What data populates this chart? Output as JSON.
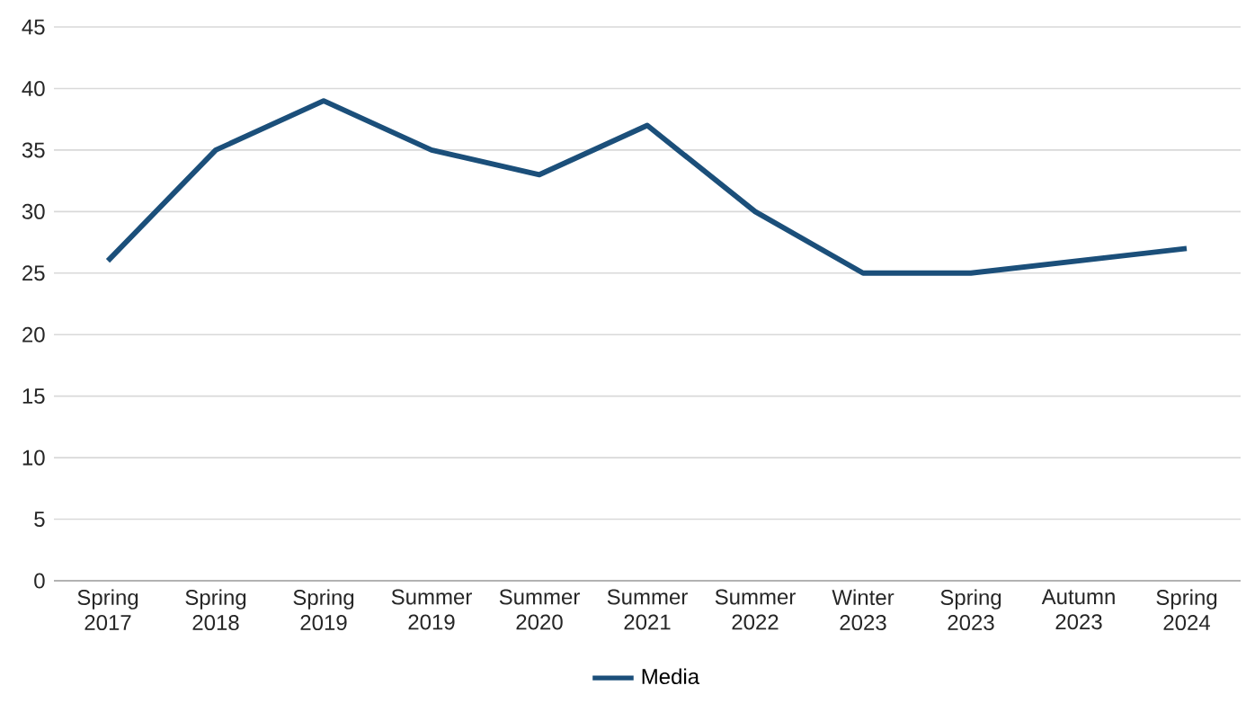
{
  "chart_data": {
    "type": "line",
    "categories": [
      "Spring 2017",
      "Spring 2018",
      "Spring 2019",
      "Summer 2019",
      "Summer 2020",
      "Summer 2021",
      "Summer 2022",
      "Winter 2023",
      "Spring 2023",
      "Autumn 2023",
      "Spring 2024"
    ],
    "series": [
      {
        "name": "Media",
        "color": "#1b4f7a",
        "values": [
          26,
          35,
          39,
          35,
          33,
          37,
          30,
          25,
          25,
          26,
          27
        ]
      }
    ],
    "ylim": [
      0,
      45
    ],
    "yticks": [
      0,
      5,
      10,
      15,
      20,
      25,
      30,
      35,
      40,
      45
    ],
    "grid": "y",
    "legend": "bottom",
    "marker": "none",
    "line_style": "solid"
  }
}
